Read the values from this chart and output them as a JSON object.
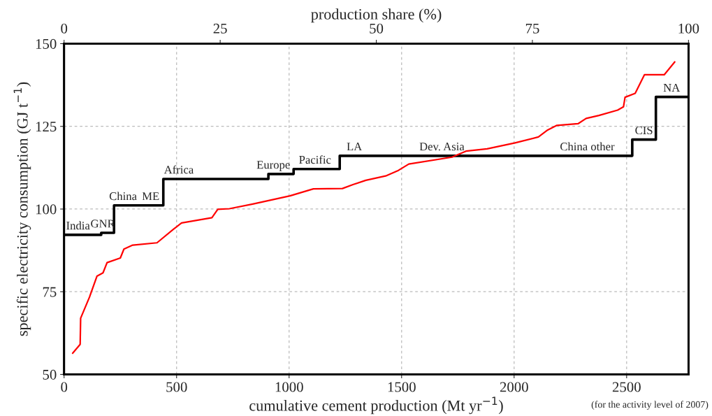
{
  "chart_data": {
    "type": "line",
    "xlabel": "cumulative cement production (Mt yr$^{−1}$)",
    "ylabel": "specific electricity consumption (GJ t$^{−1}$)",
    "x2label": "production share (%)",
    "xlim": [
      0,
      2775
    ],
    "xticks": [
      0,
      500,
      1000,
      1500,
      2000,
      2500
    ],
    "ylim": [
      50,
      150
    ],
    "yticks": [
      50,
      75,
      100,
      125,
      150
    ],
    "x2lim": [
      0,
      100
    ],
    "x2ticks": [
      0,
      25,
      50,
      75,
      100
    ],
    "grid": true,
    "legend": false,
    "series": [
      {
        "type": "step",
        "color": "#000000",
        "x": [
          0,
          165,
          222,
          441,
          908,
          1020,
          1225,
          2525,
          2630,
          2775
        ],
        "values": [
          92.2,
          92.8,
          101.1,
          109.1,
          110.6,
          112.1,
          116.1,
          121,
          133.9,
          133.9
        ]
      },
      {
        "type": "line",
        "color": "#ff0000",
        "x": [
          38,
          71.5,
          73.6,
          113,
          146,
          173,
          191,
          250,
          266,
          305,
          413,
          486,
          522,
          657,
          683,
          735,
          838,
          1004,
          1108,
          1237,
          1284,
          1341,
          1429,
          1486,
          1532,
          1724,
          1786,
          1880,
          2004,
          2108,
          2149,
          2190,
          2284,
          2320,
          2377,
          2460,
          2486,
          2493,
          2538,
          2579,
          2667,
          2714
        ],
        "values": [
          56.4,
          59.1,
          67.0,
          73.4,
          79.7,
          80.7,
          83.8,
          85.2,
          87.9,
          89.1,
          89.8,
          93.9,
          95.8,
          97.4,
          99.9,
          100.1,
          101.5,
          104.0,
          106.1,
          106.2,
          107.4,
          108.7,
          110.0,
          111.7,
          113.6,
          115.7,
          117.5,
          118.2,
          120.0,
          121.8,
          123.9,
          125.3,
          125.8,
          127.4,
          128.3,
          129.9,
          130.9,
          133.8,
          135.0,
          140.6,
          140.6,
          144.5
        ]
      }
    ],
    "annotations": [
      {
        "text": "India",
        "x": 62,
        "y": 92.2
      },
      {
        "text": "GNR",
        "x": 172,
        "y": 92.8
      },
      {
        "text": "China",
        "x": 262,
        "y": 101.1
      },
      {
        "text": "ME",
        "x": 385,
        "y": 101.1
      },
      {
        "text": "Africa",
        "x": 510,
        "y": 109.1
      },
      {
        "text": "Europe",
        "x": 930,
        "y": 110.6
      },
      {
        "text": "Pacific",
        "x": 1115,
        "y": 112.1
      },
      {
        "text": "LA",
        "x": 1290,
        "y": 116.1
      },
      {
        "text": "Dev. Asia",
        "x": 1679,
        "y": 116.1
      },
      {
        "text": "China other",
        "x": 2325,
        "y": 116.1
      },
      {
        "text": "CIS",
        "x": 2577,
        "y": 121
      },
      {
        "text": "NA",
        "x": 2700,
        "y": 133.9
      },
      "(for the activity level of 2007)"
    ]
  }
}
